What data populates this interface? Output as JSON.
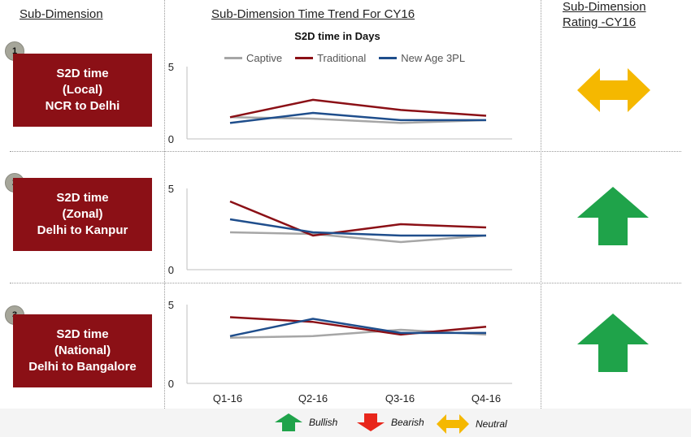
{
  "headers": {
    "sub_dimension": "Sub-Dimension",
    "trend_title": "Sub-Dimension Time Trend For CY16",
    "rating_line1": "Sub-Dimension",
    "rating_line2": "Rating -CY16"
  },
  "chart_subtitle": "S2D time in Days",
  "rows": [
    {
      "number": "1",
      "line1": "S2D time",
      "line2": "(Local)",
      "line3": "NCR to Delhi",
      "rating": "neutral"
    },
    {
      "number": "2",
      "line1": "S2D time",
      "line2": "(Zonal)",
      "line3": "Delhi to Kanpur",
      "rating": "bullish"
    },
    {
      "number": "3",
      "line1": "S2D time",
      "line2": "(National)",
      "line3": "Delhi to Bangalore",
      "rating": "bullish"
    }
  ],
  "legend": {
    "key_bullish": "Bullish",
    "key_bearish": "Bearish",
    "key_neutral": "Neutral"
  },
  "colors": {
    "captive": "#a6a6a6",
    "traditional": "#8b1016",
    "new_age_3pl": "#1f4e8c",
    "box": "#8b1016",
    "bullish": "#1fa34a",
    "bearish": "#e8261b",
    "neutral": "#f5b800"
  },
  "chart_data": [
    {
      "type": "line",
      "title": "S2D time in Days",
      "x": [
        "Q1-16",
        "Q2-16",
        "Q3-16",
        "Q4-16"
      ],
      "ylim": [
        0,
        5
      ],
      "yticks": [
        "0",
        "5"
      ],
      "series": [
        {
          "name": "Captive",
          "values": [
            1.5,
            1.4,
            1.1,
            1.3
          ]
        },
        {
          "name": "Traditional",
          "values": [
            1.5,
            2.7,
            2.0,
            1.6
          ]
        },
        {
          "name": "New Age 3PL",
          "values": [
            1.1,
            1.8,
            1.3,
            1.3
          ]
        }
      ]
    },
    {
      "type": "line",
      "x": [
        "Q1-16",
        "Q2-16",
        "Q3-16",
        "Q4-16"
      ],
      "ylim": [
        0,
        5
      ],
      "yticks": [
        "0",
        "5"
      ],
      "series": [
        {
          "name": "Captive",
          "values": [
            2.3,
            2.2,
            1.7,
            2.1
          ]
        },
        {
          "name": "Traditional",
          "values": [
            4.2,
            2.1,
            2.8,
            2.6
          ]
        },
        {
          "name": "New Age 3PL",
          "values": [
            3.1,
            2.3,
            2.1,
            2.1
          ]
        }
      ]
    },
    {
      "type": "line",
      "x": [
        "Q1-16",
        "Q2-16",
        "Q3-16",
        "Q4-16"
      ],
      "ylim": [
        0,
        5
      ],
      "yticks": [
        "0",
        "5"
      ],
      "series": [
        {
          "name": "Captive",
          "values": [
            2.9,
            3.0,
            3.4,
            3.1
          ]
        },
        {
          "name": "Traditional",
          "values": [
            4.2,
            3.9,
            3.1,
            3.6
          ]
        },
        {
          "name": "New Age 3PL",
          "values": [
            3.0,
            4.1,
            3.2,
            3.2
          ]
        }
      ]
    }
  ]
}
